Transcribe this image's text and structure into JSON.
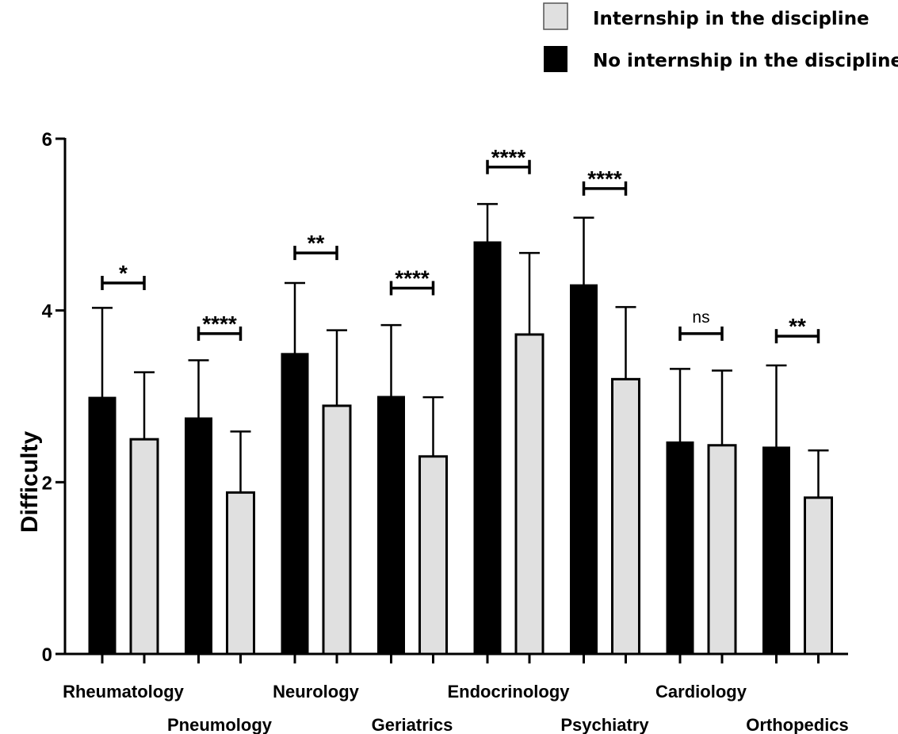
{
  "chart_data": {
    "type": "bar",
    "title": "",
    "xlabel": "",
    "ylabel": "Difficulty",
    "ylim": [
      0,
      6
    ],
    "yticks": [
      0,
      2,
      4,
      6
    ],
    "grid": false,
    "legend_position": "top-right",
    "categories": [
      "Rheumatology",
      "Pneumology",
      "Neurology",
      "Geriatrics",
      "Endocrinology",
      "Psychiatry",
      "Cardiology",
      "Orthopedics"
    ],
    "series": [
      {
        "name": "No internship in the discipline",
        "color": "#000000",
        "values": [
          2.99,
          2.75,
          3.5,
          3.0,
          4.8,
          4.3,
          2.47,
          2.41
        ],
        "error_upper": [
          4.03,
          3.42,
          4.32,
          3.83,
          5.24,
          5.08,
          3.32,
          3.36
        ]
      },
      {
        "name": "Internship in the discipline",
        "color": "#e0e0e0",
        "values": [
          2.5,
          1.88,
          2.89,
          2.3,
          3.72,
          3.2,
          2.43,
          1.82
        ],
        "error_upper": [
          3.28,
          2.59,
          3.77,
          2.99,
          4.67,
          4.04,
          3.3,
          2.37
        ]
      }
    ],
    "significance": [
      "*",
      "****",
      "**",
      "****",
      "****",
      "****",
      "ns",
      "**"
    ],
    "significance_y": [
      4.32,
      3.73,
      4.67,
      4.26,
      5.67,
      5.42,
      3.73,
      3.7
    ]
  }
}
